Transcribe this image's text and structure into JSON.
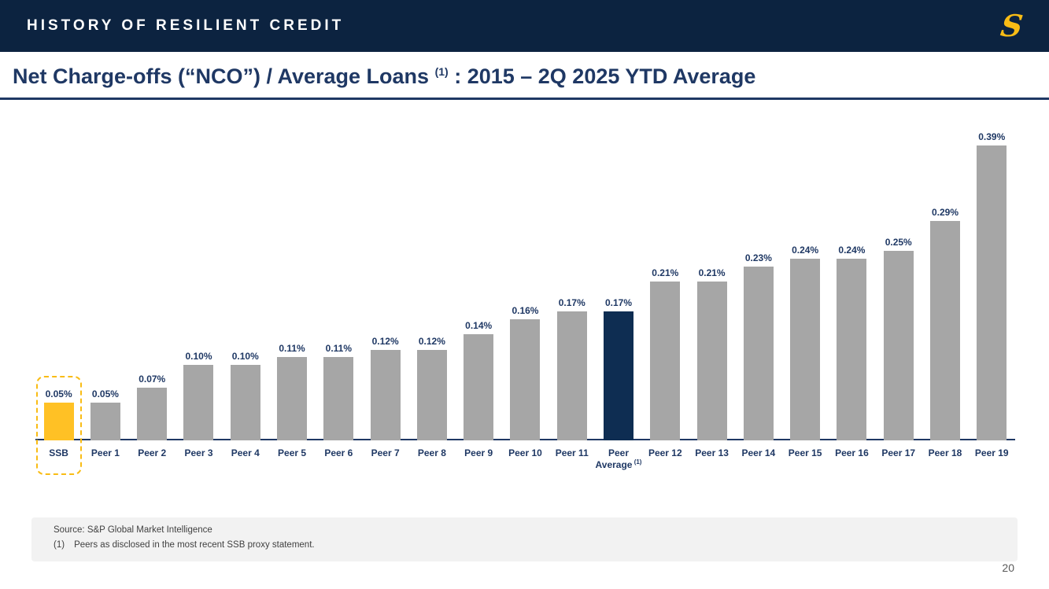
{
  "header": {
    "title": "HISTORY OF RESILIENT CREDIT"
  },
  "brand": {
    "logo_glyph": "S"
  },
  "slide": {
    "title_main": "Net Charge-offs (“NCO”) / Average Loans ",
    "title_sup": "(1)",
    "title_tail": " : 2015 – 2Q 2025 YTD Average"
  },
  "chart_data": {
    "type": "bar",
    "title": "Net Charge-offs (“NCO”) / Average Loans : 2015 – 2Q 2025 YTD Average",
    "unit": "%",
    "ylim": [
      0,
      0.4
    ],
    "grid": false,
    "legend": "none",
    "value_labels_shown": true,
    "colors": {
      "default": "#A6A6A6",
      "ssb": "#FFC125",
      "peer_average": "#0E2D52"
    },
    "bars": [
      {
        "label": "SSB",
        "value": 0.05,
        "display": "0.05%",
        "color": "ssb",
        "highlight_box": true
      },
      {
        "label": "Peer 1",
        "value": 0.05,
        "display": "0.05%",
        "color": "default"
      },
      {
        "label": "Peer 2",
        "value": 0.07,
        "display": "0.07%",
        "color": "default"
      },
      {
        "label": "Peer 3",
        "value": 0.1,
        "display": "0.10%",
        "color": "default"
      },
      {
        "label": "Peer 4",
        "value": 0.1,
        "display": "0.10%",
        "color": "default"
      },
      {
        "label": "Peer 5",
        "value": 0.11,
        "display": "0.11%",
        "color": "default"
      },
      {
        "label": "Peer 6",
        "value": 0.11,
        "display": "0.11%",
        "color": "default"
      },
      {
        "label": "Peer 7",
        "value": 0.12,
        "display": "0.12%",
        "color": "default"
      },
      {
        "label": "Peer 8",
        "value": 0.12,
        "display": "0.12%",
        "color": "default"
      },
      {
        "label": "Peer 9",
        "value": 0.14,
        "display": "0.14%",
        "color": "default"
      },
      {
        "label": "Peer 10",
        "value": 0.16,
        "display": "0.16%",
        "color": "default"
      },
      {
        "label": "Peer 11",
        "value": 0.17,
        "display": "0.17%",
        "color": "default"
      },
      {
        "label": "Peer Average",
        "sup": "(1)",
        "value": 0.17,
        "display": "0.17%",
        "color": "peer_average"
      },
      {
        "label": "Peer 12",
        "value": 0.21,
        "display": "0.21%",
        "color": "default"
      },
      {
        "label": "Peer 13",
        "value": 0.21,
        "display": "0.21%",
        "color": "default"
      },
      {
        "label": "Peer 14",
        "value": 0.23,
        "display": "0.23%",
        "color": "default"
      },
      {
        "label": "Peer 15",
        "value": 0.24,
        "display": "0.24%",
        "color": "default"
      },
      {
        "label": "Peer 16",
        "value": 0.24,
        "display": "0.24%",
        "color": "default"
      },
      {
        "label": "Peer 17",
        "value": 0.25,
        "display": "0.25%",
        "color": "default"
      },
      {
        "label": "Peer 18",
        "value": 0.29,
        "display": "0.29%",
        "color": "default"
      },
      {
        "label": "Peer 19",
        "value": 0.39,
        "display": "0.39%",
        "color": "default"
      }
    ]
  },
  "footer": {
    "source": "Source: S&P Global Market Intelligence",
    "footnote_marker": "(1)",
    "footnote_text": "Peers as disclosed in the most recent SSB proxy statement.",
    "page_number": "20"
  }
}
